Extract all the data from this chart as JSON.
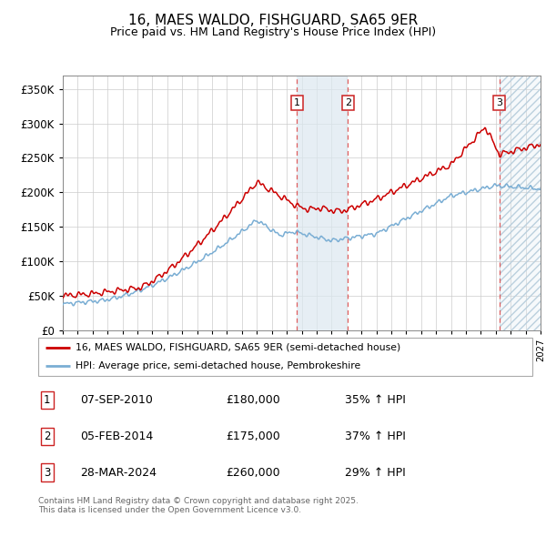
{
  "title": "16, MAES WALDO, FISHGUARD, SA65 9ER",
  "subtitle": "Price paid vs. HM Land Registry's House Price Index (HPI)",
  "xlim": [
    1995,
    2027
  ],
  "ylim": [
    0,
    370000
  ],
  "yticks": [
    0,
    50000,
    100000,
    150000,
    200000,
    250000,
    300000,
    350000
  ],
  "ytick_labels": [
    "£0",
    "£50K",
    "£100K",
    "£150K",
    "£200K",
    "£250K",
    "£300K",
    "£350K"
  ],
  "transactions": [
    {
      "date_num": 2010.68,
      "price": 180000,
      "label": "1"
    },
    {
      "date_num": 2014.09,
      "price": 175000,
      "label": "2"
    },
    {
      "date_num": 2024.24,
      "price": 260000,
      "label": "3"
    }
  ],
  "transaction_table": [
    {
      "num": "1",
      "date": "07-SEP-2010",
      "price": "£180,000",
      "pct": "35% ↑ HPI"
    },
    {
      "num": "2",
      "date": "05-FEB-2014",
      "price": "£175,000",
      "pct": "37% ↑ HPI"
    },
    {
      "num": "3",
      "date": "28-MAR-2024",
      "price": "£260,000",
      "pct": "29% ↑ HPI"
    }
  ],
  "legend_entries": [
    "16, MAES WALDO, FISHGUARD, SA65 9ER (semi-detached house)",
    "HPI: Average price, semi-detached house, Pembrokeshire"
  ],
  "footer": "Contains HM Land Registry data © Crown copyright and database right 2025.\nThis data is licensed under the Open Government Licence v3.0.",
  "red_color": "#cc0000",
  "blue_color": "#7aaed4",
  "shade_color": "#dce8f0",
  "hatch_color": "#b0c8d8",
  "bg_color": "#ffffff",
  "grid_color": "#cccccc"
}
